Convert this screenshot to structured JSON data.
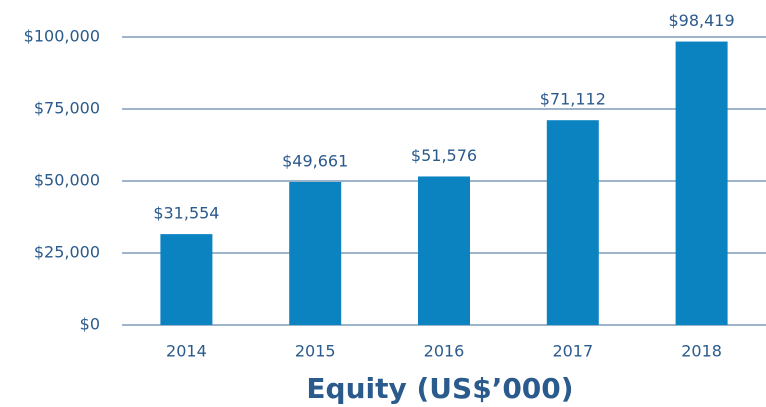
{
  "chart_data": {
    "type": "bar",
    "title": "Equity (US$’000)",
    "categories": [
      "2014",
      "2015",
      "2016",
      "2017",
      "2018"
    ],
    "values": [
      31554,
      49661,
      51576,
      71112,
      98419
    ],
    "value_labels": [
      "$31,554",
      "$49,661",
      "$51,576",
      "$71,112",
      "$98,419"
    ],
    "color": "#0b83c1",
    "ylim": [
      0,
      100000
    ],
    "yticks": [
      {
        "value": 0,
        "label": "$0"
      },
      {
        "value": 25000,
        "label": "$25,000"
      },
      {
        "value": 50000,
        "label": "$50,000"
      },
      {
        "value": 75000,
        "label": "$75,000"
      },
      {
        "value": 100000,
        "label": "$100,000"
      }
    ],
    "grid": true
  }
}
